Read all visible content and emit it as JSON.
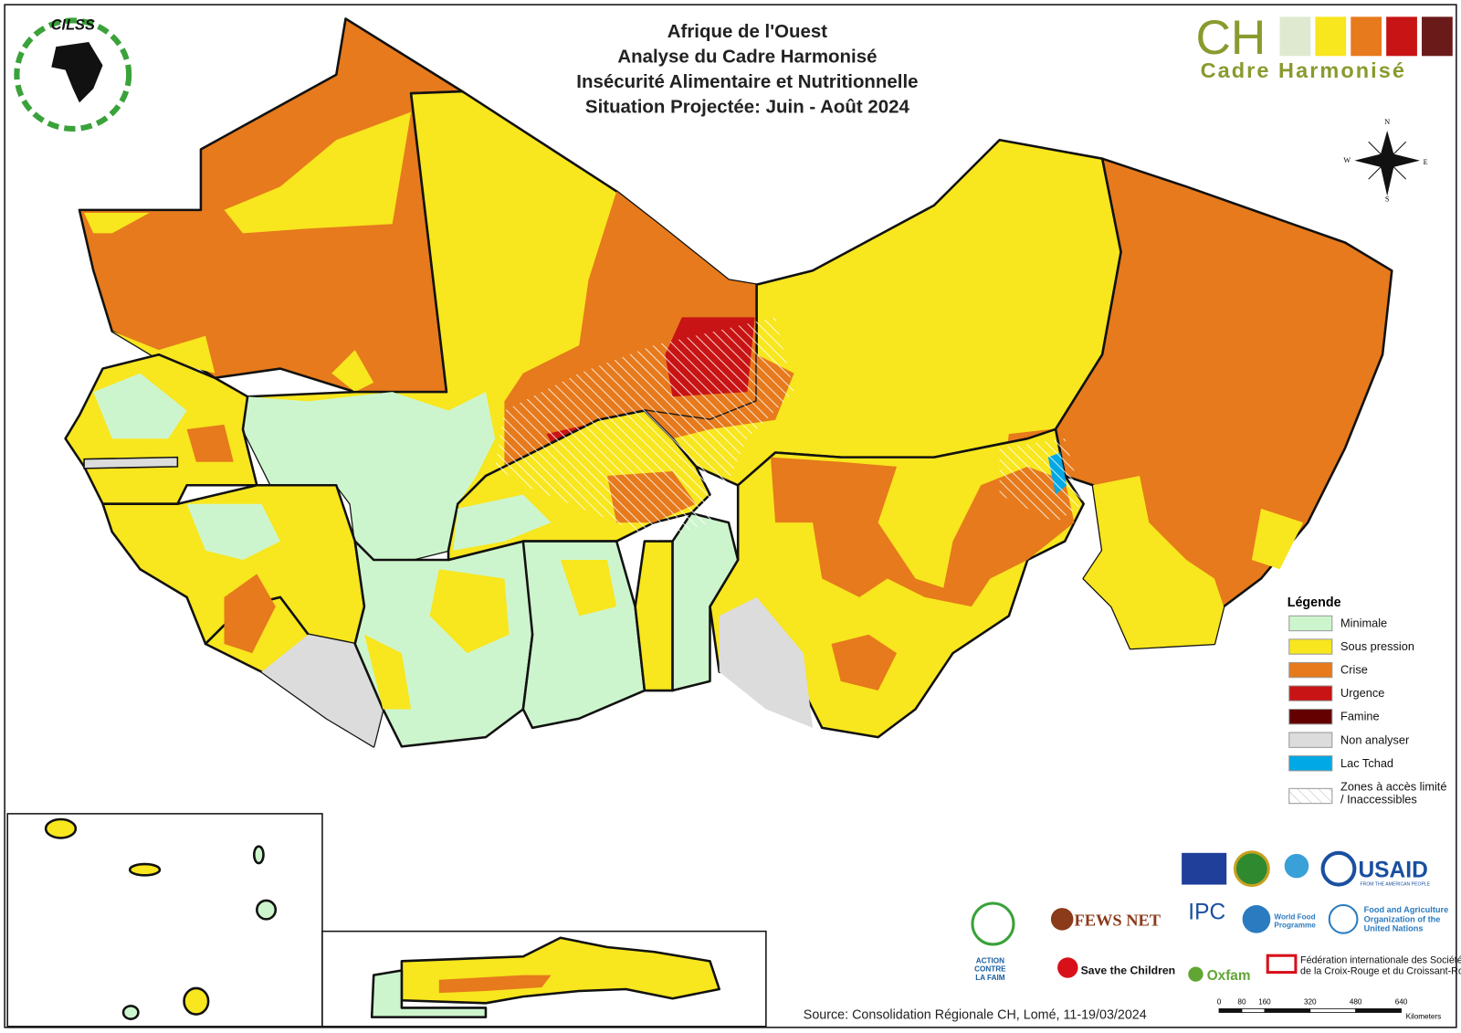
{
  "header": {
    "title_lines": [
      "Afrique de l'Ouest",
      "Analyse du Cadre Harmonisé",
      "Insécurité Alimentaire et Nutritionnelle",
      "Situation Projectée: Juin - Août 2024"
    ]
  },
  "logo_ch": {
    "abbr": "CH",
    "name": "Cadre Harmonisé"
  },
  "logo_cilss": "CILSS",
  "compass": {
    "n": "N",
    "w": "W",
    "e": "E",
    "s": "S"
  },
  "legend": {
    "title": "Légende",
    "items": [
      {
        "label": "Minimale",
        "color": "#cdf5cd"
      },
      {
        "label": "Sous pression",
        "color": "#f8e61e"
      },
      {
        "label": "Crise",
        "color": "#e67a1c"
      },
      {
        "label": "Urgence",
        "color": "#c81414"
      },
      {
        "label": "Famine",
        "color": "#640000"
      },
      {
        "label": "Non analyser",
        "color": "#dcdcdc"
      },
      {
        "label": "Lac Tchad",
        "color": "#00a8e6"
      },
      {
        "label": "Zones à accès limité / Inaccessibles",
        "pattern": "hatch"
      }
    ]
  },
  "source": "Source: Consolidation Régionale CH, Lomé, 11-19/03/2024",
  "scale": {
    "ticks": [
      0,
      80,
      160,
      320,
      480,
      640
    ],
    "unit": "Kilometers"
  },
  "partners": {
    "fews": "FEWS NET",
    "ipc": "IPC",
    "wfp": [
      "World Food",
      "Programme"
    ],
    "fao": [
      "Food and Agriculture",
      "Organization of the",
      "United Nations"
    ],
    "usaid": "USAID",
    "usaid_sub": "FROM THE AMERICAN PEOPLE",
    "acf": [
      "ACTION",
      "CONTRE",
      "LA FAIM"
    ],
    "stc": "Save the Children",
    "oxfam": "Oxfam",
    "ifrc": [
      "Fédération internationale des Sociétés",
      "de la Croix-Rouge et du Croissant-Rouge"
    ]
  }
}
